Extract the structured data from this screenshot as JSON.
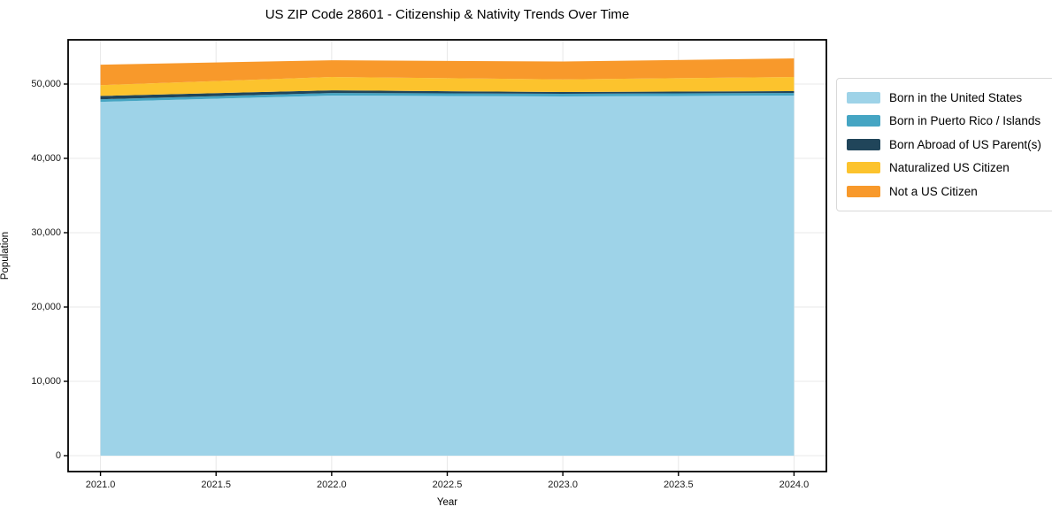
{
  "figure": {
    "title": "US ZIP Code 28601 - Citizenship & Nativity Trends Over Time"
  },
  "chart_data": {
    "type": "area",
    "stacked": true,
    "title": "US ZIP Code 28601 - Citizenship & Nativity Trends Over Time",
    "xlabel": "Year",
    "ylabel": "Population",
    "x": [
      2021,
      2022,
      2023,
      2024
    ],
    "series": [
      {
        "name": "Born in the United States",
        "color": "#9ed3e8",
        "values": [
          47600,
          48450,
          48330,
          48450
        ]
      },
      {
        "name": "Born in Puerto Rico / Islands",
        "color": "#45a5c3",
        "values": [
          350,
          350,
          360,
          350
        ]
      },
      {
        "name": "Born Abroad of US Parent(s)",
        "color": "#20455a",
        "values": [
          450,
          350,
          240,
          250
        ]
      },
      {
        "name": "Naturalized US Citizen",
        "color": "#fcc32d",
        "values": [
          1450,
          1800,
          1700,
          1900
        ]
      },
      {
        "name": "Not a US Citizen",
        "color": "#f8992b",
        "values": [
          2750,
          2250,
          2400,
          2500
        ]
      }
    ],
    "stacked_totals": [
      52600,
      53200,
      53030,
      53450
    ],
    "x_ticks": [
      2021.0,
      2021.5,
      2022.0,
      2022.5,
      2023.0,
      2023.5,
      2024.0
    ],
    "x_tick_labels": [
      "2021.0",
      "2021.5",
      "2022.0",
      "2022.5",
      "2023.0",
      "2023.5",
      "2024.0"
    ],
    "y_ticks": [
      0,
      10000,
      20000,
      30000,
      40000,
      50000
    ],
    "y_tick_labels": [
      "0",
      "10,000",
      "20,000",
      "30,000",
      "40,000",
      "50,000"
    ],
    "xlim": [
      2020.86,
      2024.14
    ],
    "ylim": [
      -2140,
      55950
    ],
    "grid": true,
    "grid_color": "#e8e8e8",
    "spine_color": "#000000",
    "legend_position": "right-outside"
  }
}
